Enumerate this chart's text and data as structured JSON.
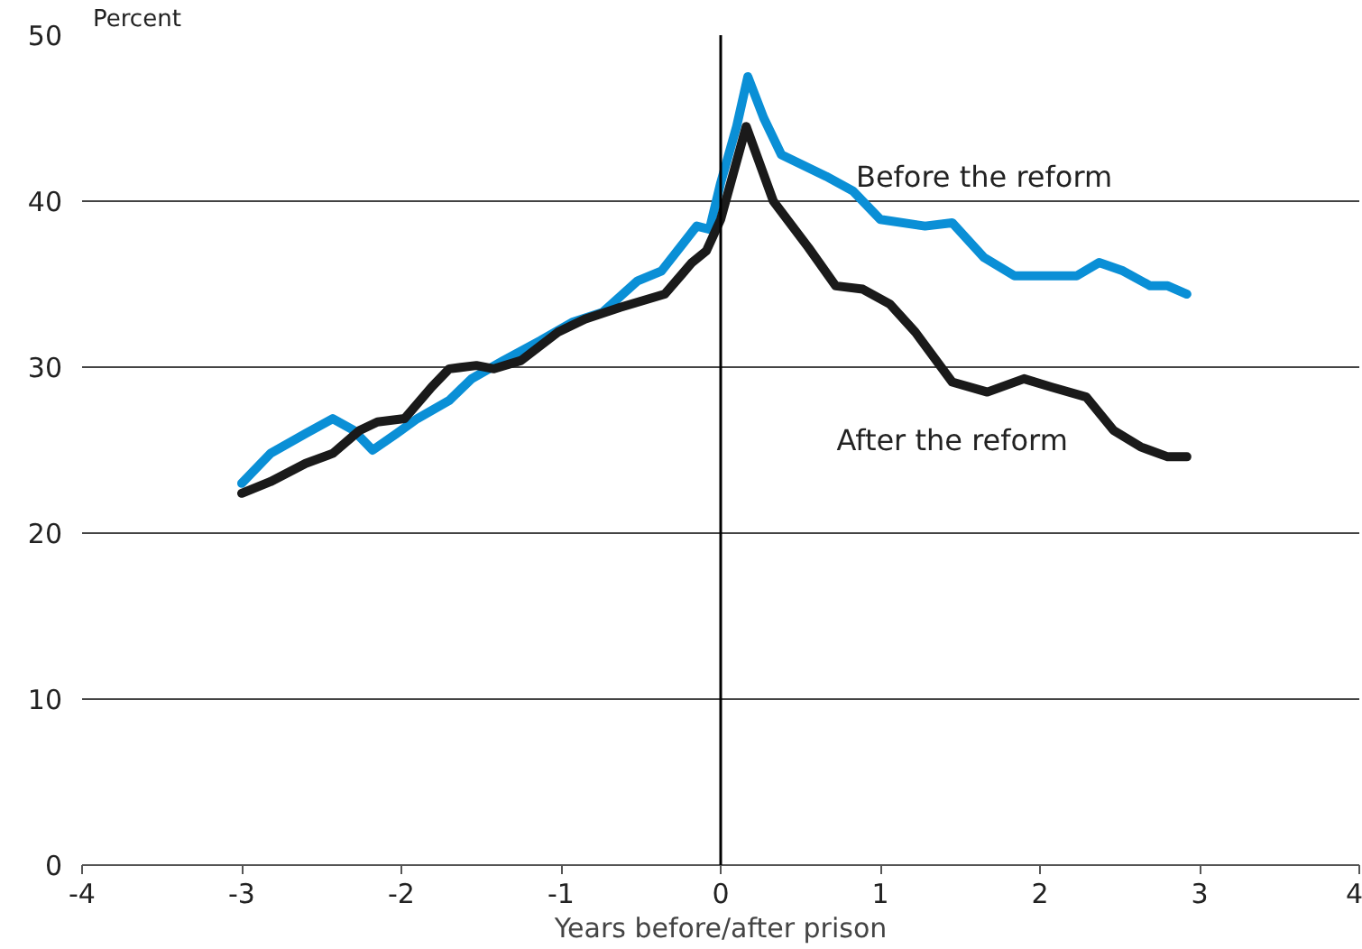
{
  "chart_data": {
    "type": "line",
    "xlabel": "Years before/after prison",
    "ylabel": "Percent",
    "xlim": [
      -4,
      4
    ],
    "xticks": [
      -4,
      -3,
      -2,
      -1,
      0,
      1,
      2,
      3,
      4
    ],
    "ylim": [
      0,
      50
    ],
    "yticks": [
      0,
      10,
      20,
      30,
      40,
      50
    ],
    "grid": "y",
    "line_style": "solid",
    "marker": "none",
    "ref_lines": [
      {
        "axis": "x",
        "value": 0,
        "label": null,
        "color": "#000000"
      }
    ],
    "series": [
      {
        "name": "Before the reform",
        "color": "#0a8fd6",
        "x": [
          -3.0,
          -2.82,
          -2.6,
          -2.43,
          -2.3,
          -2.18,
          -2.03,
          -1.9,
          -1.7,
          -1.56,
          -1.36,
          -1.13,
          -0.93,
          -0.74,
          -0.52,
          -0.37,
          -0.15,
          -0.07,
          0.0,
          0.1,
          0.17,
          0.27,
          0.38,
          0.66,
          0.83,
          1.0,
          1.28,
          1.45,
          1.65,
          1.84,
          2.12,
          2.23,
          2.37,
          2.52,
          2.69,
          2.8,
          2.92
        ],
        "values": [
          23.0,
          24.8,
          26.0,
          26.9,
          26.2,
          25.0,
          26.0,
          26.9,
          28.0,
          29.3,
          30.4,
          31.6,
          32.7,
          33.3,
          35.2,
          35.8,
          38.5,
          38.3,
          41.1,
          44.5,
          47.5,
          45.0,
          42.8,
          41.5,
          40.6,
          38.9,
          38.5,
          38.7,
          36.6,
          35.5,
          35.5,
          35.5,
          36.3,
          35.8,
          34.9,
          34.9,
          34.4
        ]
      },
      {
        "name": "After the reform",
        "color": "#1a1a1a",
        "x": [
          -3.0,
          -2.82,
          -2.6,
          -2.43,
          -2.26,
          -2.15,
          -1.98,
          -1.81,
          -1.7,
          -1.53,
          -1.42,
          -1.25,
          -1.02,
          -0.85,
          -0.63,
          -0.35,
          -0.18,
          -0.09,
          0.0,
          0.16,
          0.33,
          0.55,
          0.72,
          0.89,
          1.06,
          1.22,
          1.45,
          1.67,
          1.9,
          2.07,
          2.29,
          2.46,
          2.63,
          2.8,
          2.92
        ],
        "values": [
          22.4,
          23.1,
          24.2,
          24.8,
          26.2,
          26.7,
          26.9,
          28.8,
          29.9,
          30.1,
          29.9,
          30.4,
          32.1,
          32.9,
          33.6,
          34.4,
          36.3,
          37.0,
          38.9,
          44.5,
          40.0,
          37.2,
          34.9,
          34.7,
          33.8,
          32.1,
          29.1,
          28.5,
          29.3,
          28.8,
          28.2,
          26.2,
          25.2,
          24.6,
          24.6
        ]
      }
    ]
  }
}
